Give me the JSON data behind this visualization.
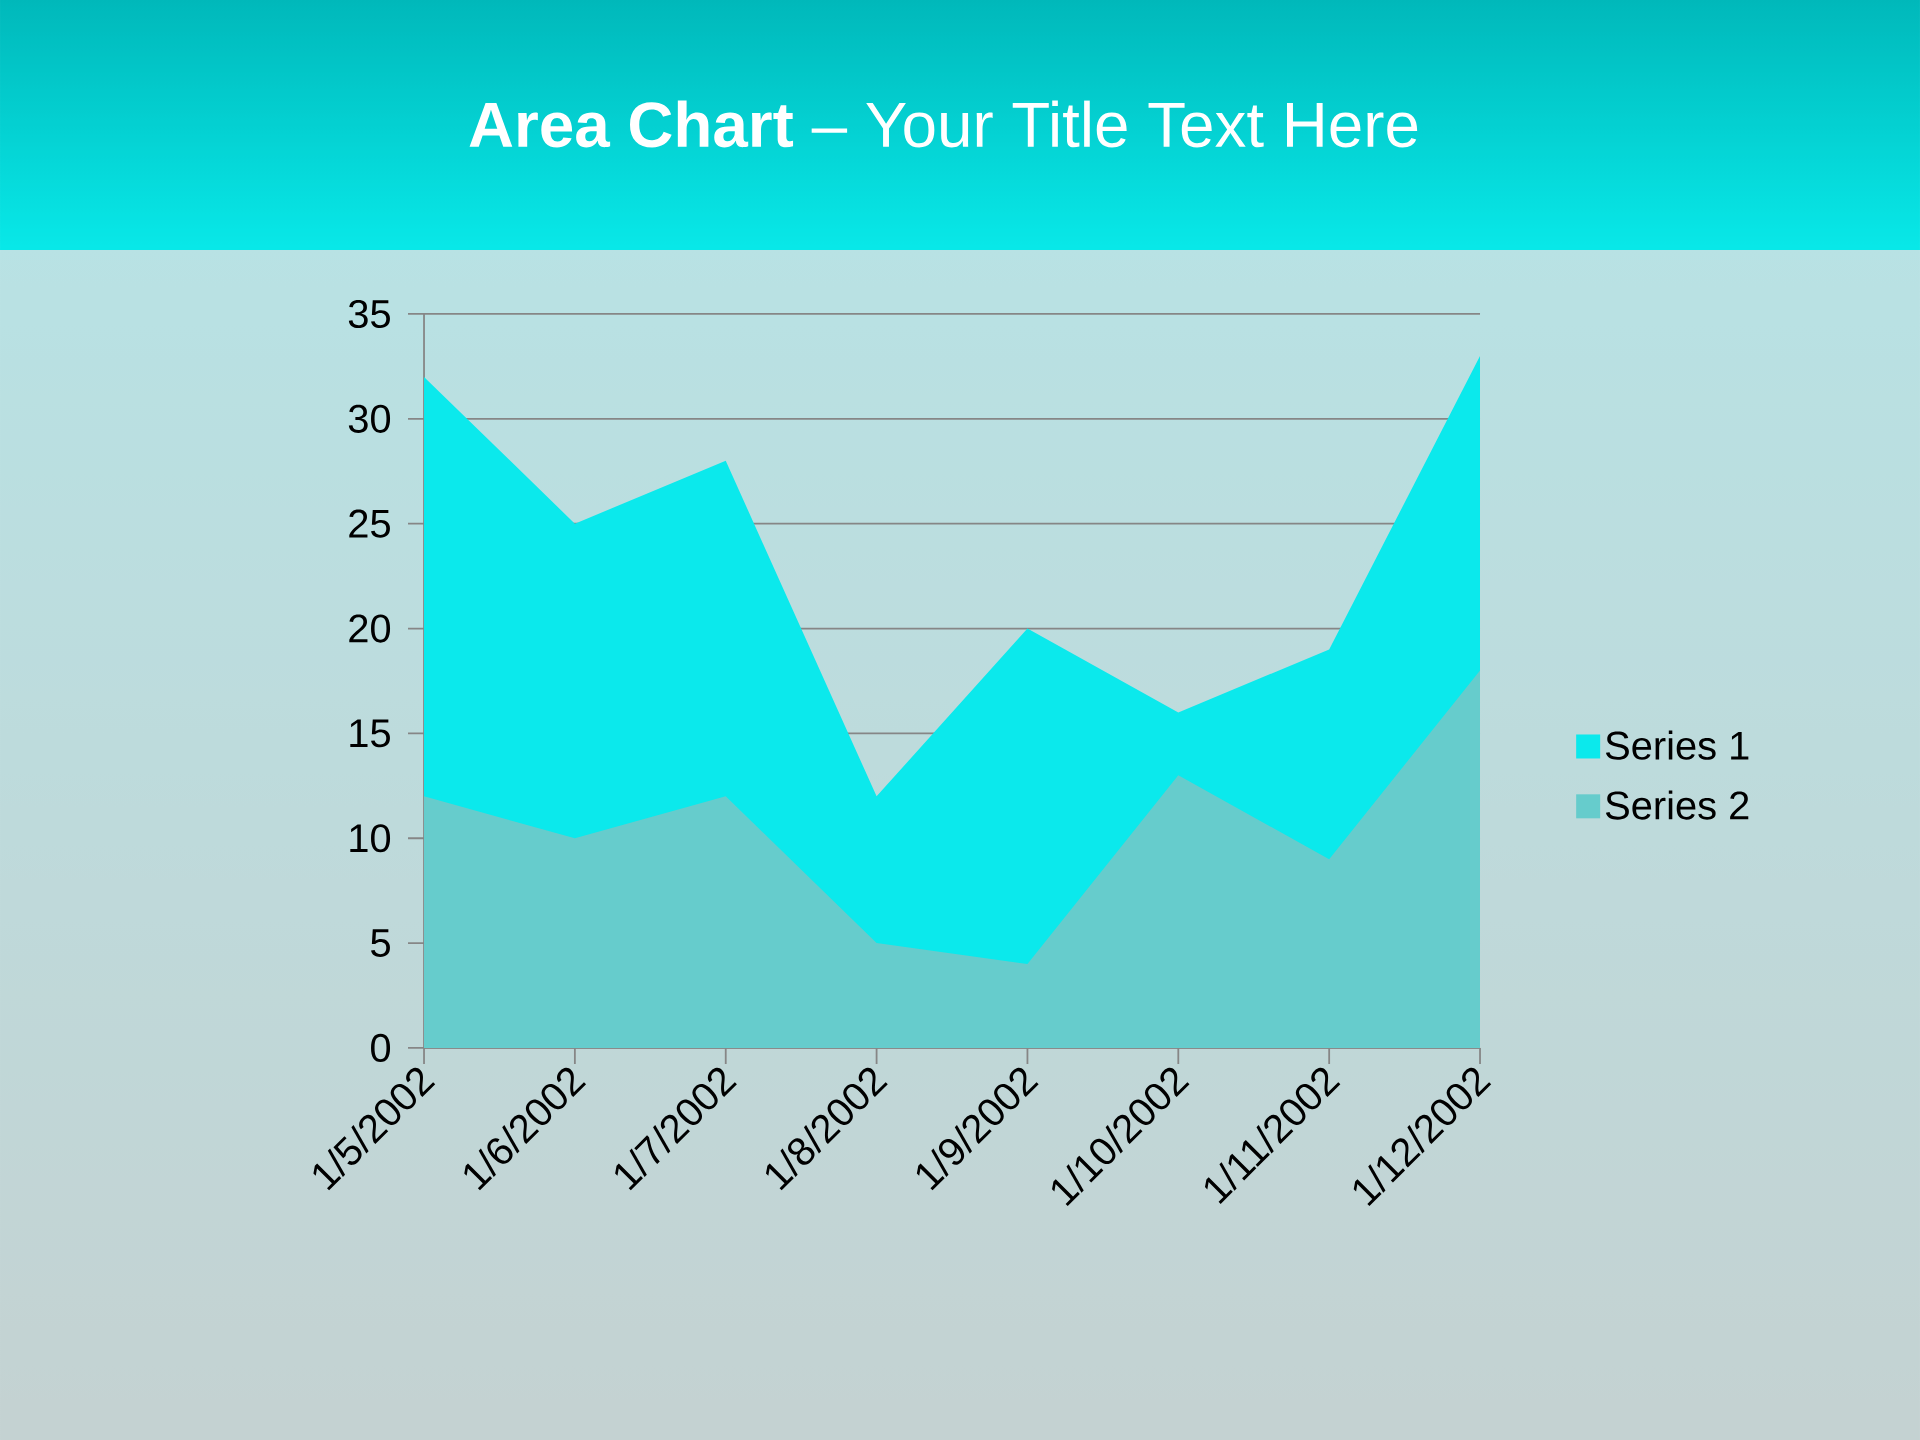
{
  "chart_data": {
    "type": "area",
    "title": "**Area Chart** – Your Title Text Here",
    "categories": [
      "1/5/2002",
      "1/6/2002",
      "1/7/2002",
      "1/8/2002",
      "1/9/2002",
      "1/10/2002",
      "1/11/2002",
      "1/12/2002"
    ],
    "series": [
      {
        "name": "Series 1",
        "color": "#0be9ec",
        "values": [
          32,
          25,
          28,
          12,
          20,
          16,
          19,
          33
        ]
      },
      {
        "name": "Series 2",
        "color": "#66cccc",
        "values": [
          12,
          10,
          12,
          5,
          4,
          13,
          9,
          18
        ]
      }
    ],
    "ylim": [
      0,
      35
    ],
    "yticks": [
      0,
      5,
      10,
      15,
      20,
      25,
      30,
      35
    ],
    "grid": "y",
    "legend": "right"
  }
}
